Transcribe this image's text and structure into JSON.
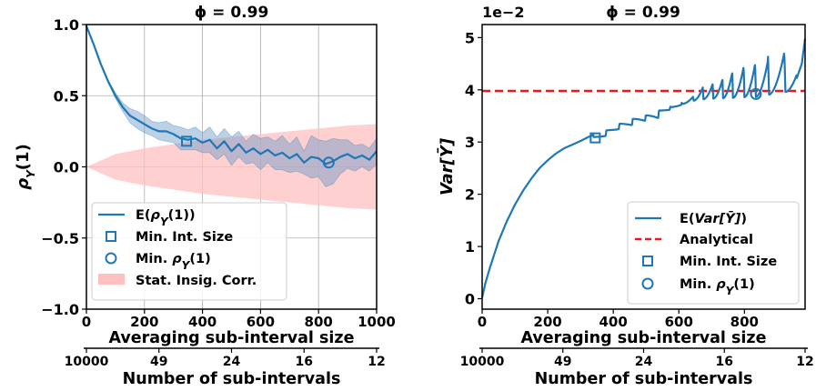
{
  "chart_data": [
    {
      "type": "line",
      "title": "ϕ = 0.99",
      "xlabel": "Averaging sub-interval size",
      "ylabel": "ρY(1)",
      "secondary_xlabel": "Number of sub-intervals",
      "xlim": [
        0,
        1000
      ],
      "ylim": [
        -1.0,
        1.0
      ],
      "xticks": [
        "0",
        "200",
        "400",
        "600",
        "800",
        "1000"
      ],
      "yticks": [
        "−1.0",
        "−0.5",
        "0.0",
        "0.5",
        "1.0"
      ],
      "secondary_xticks": [
        "10000",
        "49",
        "24",
        "16",
        "12"
      ],
      "grid": true,
      "legend_position": "lower-left",
      "legend": [
        "E(ρY(1))",
        "Min. Int. Size",
        "Min. ρY(1)",
        "Stat. Insig. Corr."
      ],
      "series": [
        {
          "name": "E(ρY(1))",
          "x": [
            0,
            25,
            50,
            75,
            100,
            125,
            150,
            175,
            200,
            225,
            250,
            275,
            300,
            325,
            350,
            375,
            400,
            425,
            450,
            475,
            500,
            525,
            550,
            575,
            600,
            625,
            650,
            675,
            700,
            725,
            750,
            775,
            800,
            825,
            850,
            875,
            900,
            925,
            950,
            975,
            1000
          ],
          "y": [
            0.99,
            0.86,
            0.72,
            0.6,
            0.5,
            0.42,
            0.36,
            0.33,
            0.3,
            0.27,
            0.25,
            0.25,
            0.23,
            0.2,
            0.19,
            0.2,
            0.17,
            0.19,
            0.13,
            0.18,
            0.11,
            0.16,
            0.1,
            0.13,
            0.09,
            0.12,
            0.08,
            0.1,
            0.06,
            0.09,
            0.03,
            0.07,
            0.06,
            0.02,
            0.04,
            0.07,
            0.09,
            0.06,
            0.08,
            0.05,
            0.11
          ]
        }
      ],
      "band_spread": [
        0,
        0.003,
        0.005,
        0.01,
        0.02,
        0.03,
        0.05,
        0.06,
        0.06,
        0.05,
        0.06,
        0.07,
        0.06,
        0.08,
        0.07,
        0.08,
        0.07,
        0.09,
        0.08,
        0.09,
        0.1,
        0.09,
        0.08,
        0.1,
        0.11,
        0.09,
        0.1,
        0.12,
        0.1,
        0.12,
        0.08,
        0.15,
        0.13,
        0.16,
        0.16,
        0.12,
        0.1,
        0.09,
        0.08,
        0.08,
        0.09
      ],
      "stat_insig_band": {
        "name": "Stat. Insig. Corr.",
        "x": [
          0,
          100,
          200,
          300,
          400,
          500,
          600,
          700,
          800,
          900,
          1000
        ],
        "upper": [
          0,
          0.09,
          0.13,
          0.16,
          0.19,
          0.21,
          0.23,
          0.25,
          0.27,
          0.29,
          0.3
        ],
        "lower": [
          0,
          -0.09,
          -0.13,
          -0.16,
          -0.19,
          -0.21,
          -0.23,
          -0.25,
          -0.27,
          -0.29,
          -0.3
        ]
      },
      "markers": [
        {
          "name": "Min. Int. Size",
          "shape": "square",
          "x": 345,
          "y": 0.18
        },
        {
          "name": "Min. ρY(1)",
          "shape": "circle",
          "x": 835,
          "y": 0.03
        }
      ],
      "colors": {
        "line": "#1f77b4",
        "line_band": "#6a96c8",
        "stat_band": "#ffc0c0"
      }
    },
    {
      "type": "line",
      "title": "ϕ = 0.99",
      "xlabel": "Averaging sub-interval size",
      "ylabel": "Var[Ȳ]",
      "secondary_xlabel": "Number of sub-intervals",
      "y_multiplier": "1e−2",
      "xlim": [
        0,
        985
      ],
      "ylim": [
        -0.2,
        5.25
      ],
      "xticks": [
        "0",
        "200",
        "400",
        "600",
        "800"
      ],
      "yticks": [
        "0",
        "1",
        "2",
        "3",
        "4",
        "5"
      ],
      "secondary_xticks": [
        "10000",
        "49",
        "24",
        "16",
        "12"
      ],
      "grid": false,
      "legend_position": "lower-right",
      "legend": [
        "E(Var[Ȳ])",
        "Analytical",
        "Min. Int. Size",
        "Min. ρY(1)"
      ],
      "series": [
        {
          "name": "E(Var[Ȳ])",
          "x": [
            0,
            10,
            25,
            50,
            75,
            100,
            125,
            150,
            175,
            200,
            225,
            250,
            275,
            300,
            325,
            345,
            360,
            375,
            390,
            400,
            425,
            450,
            475,
            500,
            525,
            550,
            575,
            600,
            625,
            650,
            675,
            700,
            725,
            750,
            775,
            800,
            825,
            850,
            875,
            900,
            925,
            950,
            975,
            985
          ],
          "y": [
            0.02,
            0.3,
            0.62,
            1.1,
            1.48,
            1.8,
            2.07,
            2.3,
            2.5,
            2.65,
            2.78,
            2.88,
            2.95,
            3.02,
            3.1,
            3.15,
            3.2,
            3.25,
            3.3,
            3.35,
            3.4,
            3.46,
            3.52,
            3.55,
            3.62,
            3.66,
            3.71,
            3.75,
            3.8,
            3.84,
            3.86,
            3.87,
            3.88,
            3.88,
            3.89,
            3.9,
            3.9,
            3.91,
            3.95,
            3.97,
            4.0,
            4.05,
            4.5,
            4.98
          ]
        },
        {
          "name": "Analytical",
          "x": [
            0,
            985
          ],
          "y": [
            3.98,
            3.98
          ]
        }
      ],
      "oscillation": {
        "x_start": [
          340,
          380,
          420,
          460,
          500,
          540,
          575,
          610,
          645,
          675,
          705,
          735,
          765,
          800,
          835,
          875,
          925
        ],
        "peak": [
          3.12,
          3.25,
          3.32,
          3.4,
          3.45,
          3.62,
          3.72,
          3.88,
          4.08,
          4.15,
          4.25,
          4.4,
          4.52,
          4.58,
          4.68,
          4.82,
          4.85
        ]
      },
      "markers": [
        {
          "name": "Min. Int. Size",
          "shape": "square",
          "x": 345,
          "y": 3.08
        },
        {
          "name": "Min. ρY(1)",
          "shape": "circle",
          "x": 835,
          "y": 3.92
        }
      ],
      "colors": {
        "line": "#1f77b4",
        "analytical": "#e41a1c"
      }
    }
  ]
}
